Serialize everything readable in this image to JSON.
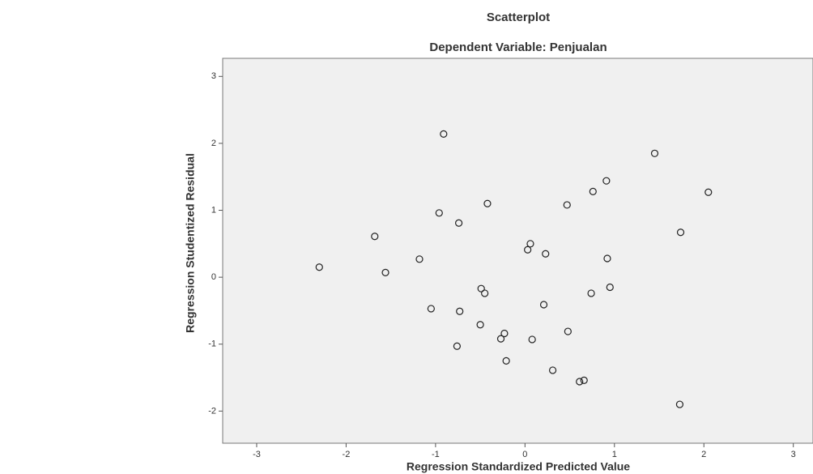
{
  "chart_data": {
    "type": "scatter",
    "title": "Scatterplot",
    "subtitle": "Dependent Variable: Penjualan",
    "x_label": "Regression Standardized Predicted Value",
    "y_label": "Regression Studentized Residual",
    "xlim": [
      -3.38,
      3.22
    ],
    "ylim": [
      -2.48,
      3.27
    ],
    "xticks": [
      -3,
      -2,
      -1,
      0,
      1,
      2,
      3
    ],
    "yticks": [
      -2,
      -1,
      0,
      1,
      2,
      3
    ],
    "series": [
      {
        "name": null,
        "color": "#222222",
        "x": [
          -2.3,
          -1.68,
          -1.56,
          -1.18,
          -0.96,
          -0.91,
          -1.05,
          -0.74,
          -0.73,
          -0.76,
          -0.42,
          -0.49,
          -0.45,
          -0.5,
          -0.27,
          -0.23,
          -0.21,
          0.03,
          0.06,
          0.08,
          0.23,
          0.21,
          0.31,
          0.47,
          0.48,
          0.76,
          0.74,
          0.61,
          0.66,
          0.91,
          0.92,
          0.95,
          1.45,
          1.74,
          1.73,
          2.05
        ],
        "values": [
          0.15,
          0.61,
          0.07,
          0.27,
          0.96,
          2.14,
          -0.47,
          0.81,
          -0.51,
          -1.03,
          1.1,
          -0.17,
          -0.24,
          -0.71,
          -0.92,
          -0.84,
          -1.25,
          0.41,
          0.5,
          -0.93,
          0.35,
          -0.41,
          -1.39,
          1.08,
          -0.81,
          1.28,
          -0.24,
          -1.56,
          -1.54,
          1.44,
          0.28,
          -0.15,
          1.85,
          0.67,
          -1.9,
          1.27
        ]
      }
    ]
  }
}
